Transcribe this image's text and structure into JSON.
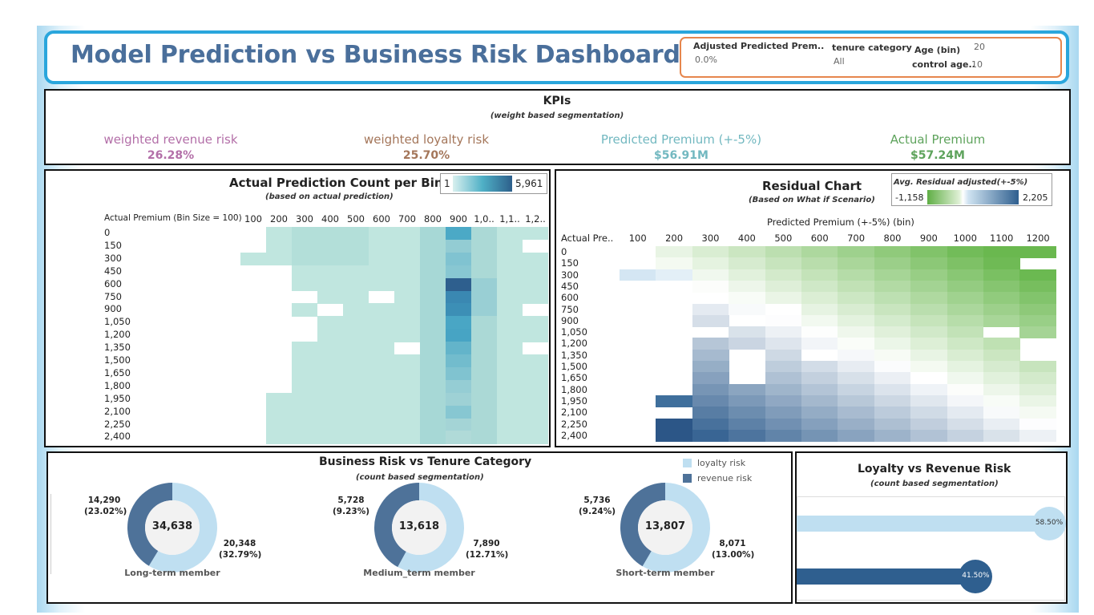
{
  "header": {
    "title": "Model Prediction vs Business Risk Dashboard",
    "filters": [
      {
        "label": "Adjusted Predicted Prem..",
        "value": "0.0%"
      },
      {
        "label": "tenure category",
        "value": "All"
      },
      {
        "label": "Age (bin)",
        "value": "20"
      },
      {
        "label": "control age..",
        "value": "10"
      }
    ]
  },
  "kpis": {
    "title": "KPIs",
    "subtitle": "(weight based segmentation)",
    "items": [
      {
        "label": "weighted revenue risk",
        "value": "26.28%",
        "color": "#b36fa8"
      },
      {
        "label": "weighted loyalty risk",
        "value": "25.70%",
        "color": "#a4765a"
      },
      {
        "label": "Predicted Premium (+-5%)",
        "value": "$56.91M",
        "color": "#72b8c0"
      },
      {
        "label": "Actual Premium",
        "value": "$57.24M",
        "color": "#5ea35c"
      }
    ]
  },
  "count_chart": {
    "title": "Actual Prediction Count per Bin",
    "subtitle": "(based on actual prediction)",
    "legend_min": "1",
    "legend_max": "5,961",
    "row_header": "Actual Premium (Bin Size = 100)",
    "columns": [
      "100",
      "200",
      "300",
      "400",
      "500",
      "600",
      "700",
      "800",
      "900",
      "1,0..",
      "1,1..",
      "1,2.."
    ],
    "rows": [
      "0",
      "150",
      "300",
      "450",
      "600",
      "750",
      "900",
      "1,050",
      "1,200",
      "1,350",
      "1,500",
      "1,650",
      "1,800",
      "1,950",
      "2,100",
      "2,250",
      "2,400"
    ]
  },
  "residual_chart": {
    "title": "Residual Chart",
    "subtitle": "(Based on What if Scenario)",
    "legend_title": "Avg. Residual adjusted(+-5%)",
    "legend_min": "-1,158",
    "legend_max": "2,205",
    "x_title": "Predicted Premium (+-5%) (bin)",
    "row_header": "Actual Pre..",
    "columns": [
      "100",
      "200",
      "300",
      "400",
      "500",
      "600",
      "700",
      "800",
      "900",
      "1000",
      "1100",
      "1200"
    ],
    "rows": [
      "0",
      "150",
      "300",
      "450",
      "600",
      "750",
      "900",
      "1,050",
      "1,200",
      "1,350",
      "1,500",
      "1,650",
      "1,800",
      "1,950",
      "2,100",
      "2,250",
      "2,400"
    ]
  },
  "tenure_chart": {
    "title": "Business Risk vs Tenure Category",
    "subtitle": "(count based segmentation)",
    "legend": [
      {
        "label": "loyalty risk",
        "color": "#bfdff1"
      },
      {
        "label": "revenue risk",
        "color": "#4e7299"
      }
    ],
    "donuts": [
      {
        "category": "Long-term member",
        "total": "34,638",
        "revenue_count": "14,290",
        "revenue_pct": "(23.02%)",
        "loyalty_count": "20,348",
        "loyalty_pct": "(32.79%)",
        "revenue_share": 0.4126
      },
      {
        "category": "Medium_term member",
        "total": "13,618",
        "revenue_count": "5,728",
        "revenue_pct": "(9.23%)",
        "loyalty_count": "7,890",
        "loyalty_pct": "(12.71%)",
        "revenue_share": 0.4206
      },
      {
        "category": "Short-term member",
        "total": "13,807",
        "revenue_count": "5,736",
        "revenue_pct": "(9.24%)",
        "loyalty_count": "8,071",
        "loyalty_pct": "(13.00%)",
        "revenue_share": 0.4154
      }
    ]
  },
  "loyalty_chart": {
    "title": "Loyalty vs Revenue Risk",
    "subtitle": "(count based segmentation)",
    "bars": [
      {
        "label": "58.50%",
        "value": 58.5,
        "color": "#bfdff1"
      },
      {
        "label": "41.50%",
        "value": 41.5,
        "color": "#2f5f8f"
      }
    ]
  }
}
